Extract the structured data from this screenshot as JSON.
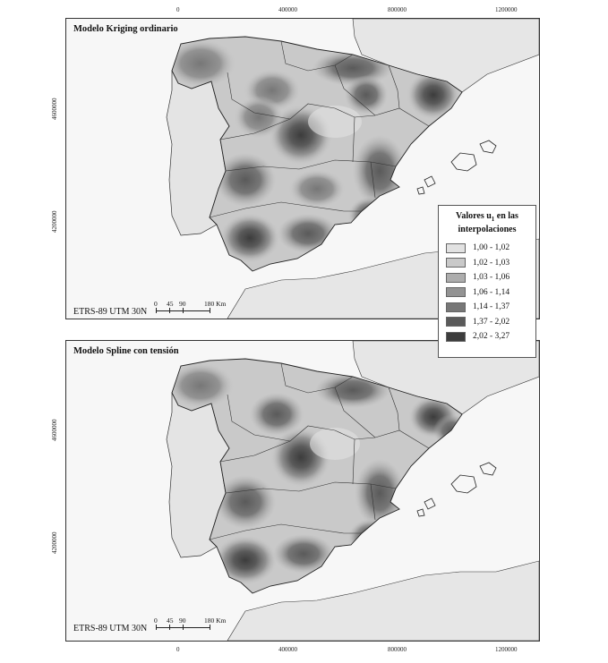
{
  "top_axis_ticks": [
    "0",
    "400000",
    "800000",
    "1200000"
  ],
  "bottom_axis_ticks": [
    "0",
    "400000",
    "800000",
    "1200000"
  ],
  "left_axis_ticks": [
    "4600000",
    "4200000"
  ],
  "panels": [
    {
      "title": "Modelo Kriging ordinario",
      "crs": "ETRS-89 UTM 30N"
    },
    {
      "title": "Modelo Spline con tensión",
      "crs": "ETRS-89 UTM 30N"
    }
  ],
  "scalebar": {
    "ticks": [
      "0",
      "45",
      "90",
      "180 Km"
    ]
  },
  "legend": {
    "title_line1": "Valores u",
    "title_sub": "1",
    "title_line1_end": " en las",
    "title_line2": "interpolaciones",
    "classes": [
      {
        "label": "1,00 - 1,02",
        "color": "#e2e2e2"
      },
      {
        "label": "1,02 - 1,03",
        "color": "#c9c9c9"
      },
      {
        "label": "1,03 - 1,06",
        "color": "#adadad"
      },
      {
        "label": "1,06 - 1,14",
        "color": "#939393"
      },
      {
        "label": "1,14 - 1,37",
        "color": "#777777"
      },
      {
        "label": "1,37 - 2,02",
        "color": "#5a5a5a"
      },
      {
        "label": "2,02 - 3,27",
        "color": "#3c3c3c"
      }
    ]
  },
  "colors": {
    "sea": "#f7f7f7",
    "land_other": "#e6e6e6",
    "portugal": "#e4e4e4",
    "border": "#333333"
  }
}
